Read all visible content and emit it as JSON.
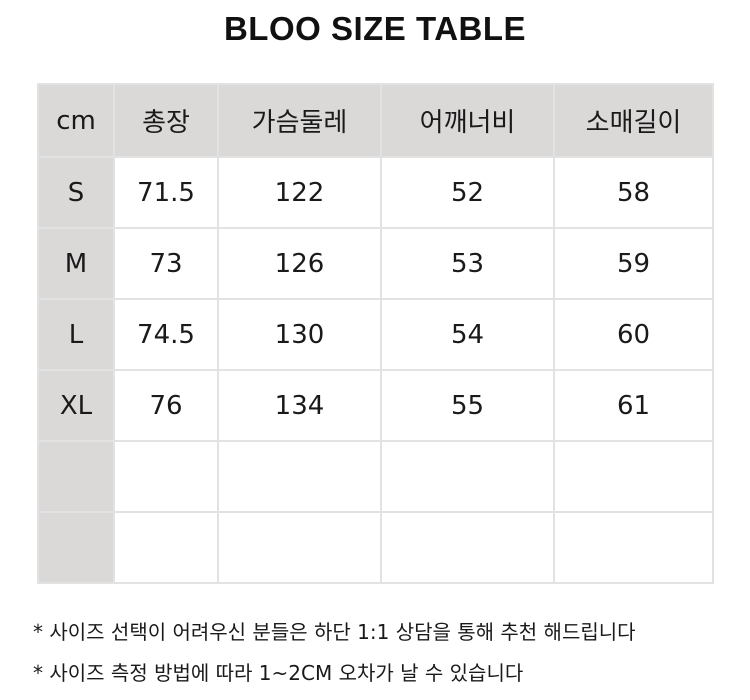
{
  "title": "BLOO SIZE TABLE",
  "table": {
    "headers": [
      "cm",
      "총장",
      "가슴둘레",
      "어깨너비",
      "소매길이"
    ],
    "rows": [
      [
        "S",
        "71.5",
        "122",
        "52",
        "58"
      ],
      [
        "M",
        "73",
        "126",
        "53",
        "59"
      ],
      [
        "L",
        "74.5",
        "130",
        "54",
        "60"
      ],
      [
        "XL",
        "76",
        "134",
        "55",
        "61"
      ],
      [
        "",
        "",
        "",
        "",
        ""
      ],
      [
        "",
        "",
        "",
        "",
        ""
      ]
    ]
  },
  "notes": [
    "* 사이즈 선택이 어려우신 분들은 하단 1:1 상담을 통해 추천 해드립니다",
    "* 사이즈 측정 방법에 따라 1~2CM 오차가 날 수 있습니다"
  ],
  "colors": {
    "header_bg": "#dbd8d8",
    "border": "#e2e2e2"
  }
}
